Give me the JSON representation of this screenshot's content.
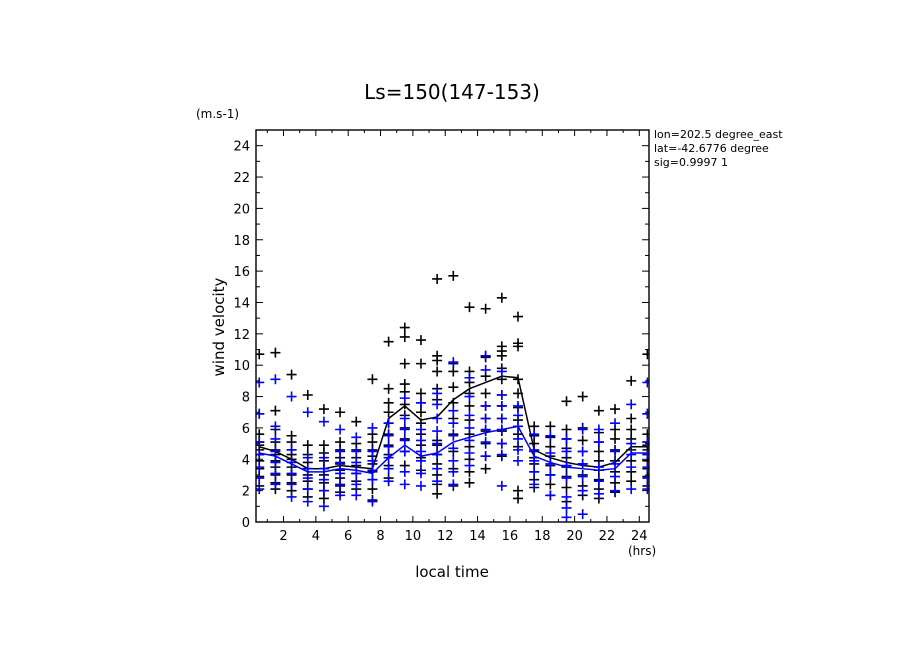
{
  "chart_data": {
    "type": "scatter",
    "title": "Ls=150(147-153)",
    "xlabel": "local time",
    "ylabel": "wind velocity",
    "x_unit": "(hrs)",
    "y_unit": "(m.s-1)",
    "xlim": [
      0.3,
      24.6
    ],
    "ylim": [
      0,
      25
    ],
    "x_ticks": [
      2,
      4,
      6,
      8,
      10,
      12,
      14,
      16,
      18,
      20,
      22,
      24
    ],
    "y_ticks": [
      0,
      2,
      4,
      6,
      8,
      10,
      12,
      14,
      16,
      18,
      20,
      22,
      24
    ],
    "annotations": [
      "lon=202.5 degree_east",
      "lat=-42.6776 degree",
      "sig=0.9997 1"
    ],
    "colors": {
      "series_a": "#000000",
      "series_b": "#0000ff"
    },
    "x": [
      0.5,
      1.5,
      2.5,
      3.5,
      4.5,
      5.5,
      6.5,
      7.5,
      8.5,
      9.5,
      10.5,
      11.5,
      12.5,
      13.5,
      14.5,
      15.5,
      16.5,
      17.5,
      18.5,
      19.5,
      20.5,
      21.5,
      22.5,
      23.5,
      24.5
    ],
    "series": [
      {
        "color": "#000000",
        "mean": [
          4.8,
          4.5,
          4.0,
          3.4,
          3.4,
          3.6,
          3.5,
          3.4,
          6.6,
          7.4,
          6.5,
          6.7,
          7.8,
          8.5,
          8.9,
          9.3,
          9.2,
          4.6,
          4.1,
          3.8,
          3.6,
          3.5,
          3.8,
          4.8,
          4.8
        ],
        "points": [
          [
            10.7,
            6.9,
            5.6,
            5.1,
            4.9,
            4.6,
            4.3,
            3.9,
            3.4,
            2.9,
            2.3
          ],
          [
            10.8,
            7.1,
            5.9,
            5.1,
            4.6,
            4.3,
            3.9,
            3.5,
            3.0,
            2.5,
            2.1
          ],
          [
            9.4,
            5.5,
            5.1,
            4.6,
            4.3,
            4.0,
            3.5,
            3.0,
            2.5,
            2.0
          ],
          [
            8.1,
            4.9,
            4.3,
            3.8,
            3.4,
            3.0,
            2.6,
            2.1,
            1.6
          ],
          [
            7.2,
            4.9,
            4.4,
            3.9,
            3.4,
            3.0,
            2.5,
            2.0,
            1.5
          ],
          [
            7.0,
            5.1,
            4.6,
            4.1,
            3.7,
            3.3,
            2.8,
            2.3,
            1.9
          ],
          [
            6.4,
            5.0,
            4.6,
            4.1,
            3.6,
            3.1,
            2.6,
            2.1
          ],
          [
            9.1,
            5.6,
            5.1,
            4.6,
            4.2,
            3.7,
            3.2,
            2.7,
            2.1,
            1.4
          ],
          [
            11.5,
            8.5,
            7.6,
            7.0,
            6.3,
            5.6,
            4.9,
            4.3,
            3.6,
            2.8
          ],
          [
            12.4,
            11.8,
            10.1,
            8.8,
            8.3,
            7.5,
            6.8,
            6.0,
            5.3,
            4.5,
            3.6
          ],
          [
            11.6,
            10.1,
            8.2,
            7.6,
            7.0,
            6.3,
            5.6,
            4.9,
            4.1,
            3.3
          ],
          [
            15.5,
            10.6,
            10.3,
            9.6,
            8.5,
            7.8,
            5.2,
            4.9,
            4.3,
            3.7,
            3.0,
            2.4,
            1.8
          ],
          [
            15.7,
            10.1,
            9.6,
            8.6,
            7.6,
            6.6,
            5.6,
            4.5,
            3.4,
            2.3
          ],
          [
            13.7,
            9.6,
            8.9,
            8.2,
            7.4,
            6.5,
            5.6,
            4.8,
            4.0,
            3.2,
            2.5
          ],
          [
            13.6,
            10.6,
            10.5,
            9.3,
            8.2,
            7.4,
            6.6,
            5.8,
            5.0,
            4.2,
            3.4
          ],
          [
            14.3,
            11.2,
            10.9,
            10.6,
            9.8,
            9.1,
            8.1,
            7.4,
            6.6,
            5.8,
            5.0,
            4.2
          ],
          [
            13.1,
            11.4,
            11.2,
            9.1,
            8.2,
            7.3,
            6.5,
            5.6,
            4.8,
            2.0,
            1.5
          ],
          [
            6.1,
            5.5,
            5.0,
            4.5,
            4.1,
            3.7,
            3.2,
            2.7,
            2.2
          ],
          [
            6.1,
            5.4,
            4.8,
            4.2,
            3.6,
            3.0,
            2.4,
            1.7
          ],
          [
            7.7,
            5.9,
            5.3,
            4.7,
            4.1,
            3.5,
            2.9,
            2.2,
            1.3
          ],
          [
            8.0,
            6.0,
            5.2,
            4.5,
            3.7,
            3.0,
            2.3,
            1.7
          ],
          [
            7.1,
            5.7,
            5.1,
            4.5,
            3.9,
            3.3,
            2.7,
            2.1,
            1.5
          ],
          [
            7.2,
            5.9,
            5.3,
            4.6,
            3.9,
            3.2,
            2.5,
            1.9
          ],
          [
            9.0,
            6.6,
            5.9,
            5.3,
            4.6,
            3.9,
            3.2,
            2.6
          ],
          [
            10.7,
            6.9,
            5.6,
            5.1,
            4.9,
            4.6,
            4.3,
            3.9,
            3.4,
            2.9,
            2.3
          ]
        ]
      },
      {
        "color": "#0000ff",
        "mean": [
          4.4,
          4.2,
          3.7,
          3.2,
          3.2,
          3.4,
          3.3,
          3.1,
          4.1,
          4.9,
          4.2,
          4.4,
          5.1,
          5.4,
          5.7,
          5.9,
          6.1,
          4.2,
          3.8,
          3.5,
          3.4,
          3.3,
          3.4,
          4.4,
          4.4
        ],
        "points": [
          [
            8.9,
            6.9,
            5.1,
            4.3,
            3.5,
            2.8,
            2.1
          ],
          [
            9.1,
            6.1,
            5.3,
            4.5,
            3.8,
            3.1,
            2.4
          ],
          [
            8.0,
            4.6,
            3.8,
            3.1,
            2.4,
            1.6
          ],
          [
            7.0,
            4.1,
            3.4,
            2.8,
            2.1,
            1.3
          ],
          [
            6.4,
            4.1,
            3.4,
            2.7,
            2.0,
            1.0
          ],
          [
            5.9,
            4.5,
            3.8,
            3.1,
            2.4,
            1.7
          ],
          [
            5.4,
            4.5,
            3.8,
            3.1,
            2.4,
            1.7
          ],
          [
            6.0,
            4.5,
            3.9,
            3.3,
            2.7,
            1.3
          ],
          [
            6.3,
            5.5,
            4.8,
            4.1,
            3.4,
            2.6
          ],
          [
            7.9,
            6.6,
            5.9,
            5.2,
            4.5,
            3.2,
            2.4
          ],
          [
            7.6,
            5.9,
            5.2,
            4.5,
            3.9,
            3.1,
            2.3
          ],
          [
            8.2,
            7.5,
            6.6,
            5.8,
            5.0,
            4.3,
            3.4,
            2.6
          ],
          [
            10.2,
            7.1,
            6.3,
            5.5,
            4.7,
            3.9,
            3.2,
            2.4
          ],
          [
            9.2,
            8.0,
            6.8,
            6.0,
            5.2,
            4.4,
            3.6
          ],
          [
            10.6,
            9.7,
            7.4,
            6.6,
            5.9,
            5.1,
            4.2
          ],
          [
            9.6,
            8.1,
            7.4,
            6.6,
            5.9,
            5.0,
            4.3,
            2.3
          ],
          [
            7.4,
            6.8,
            6.1,
            5.3,
            4.6,
            3.9
          ],
          [
            5.6,
            4.6,
            3.9,
            3.2,
            2.4
          ],
          [
            5.5,
            4.4,
            3.7,
            3.0,
            1.7
          ],
          [
            5.3,
            4.5,
            3.6,
            2.8,
            1.6,
            0.9,
            0.3
          ],
          [
            5.9,
            4.5,
            3.7,
            2.9,
            2.0,
            0.5
          ],
          [
            5.9,
            5.1,
            3.5,
            2.6,
            1.8
          ],
          [
            6.3,
            4.5,
            3.7,
            2.9,
            2.0
          ],
          [
            7.5,
            5.0,
            4.3,
            3.5,
            2.1
          ],
          [
            8.9,
            6.9,
            5.1,
            4.3,
            3.5,
            2.8,
            2.1
          ]
        ]
      }
    ]
  }
}
